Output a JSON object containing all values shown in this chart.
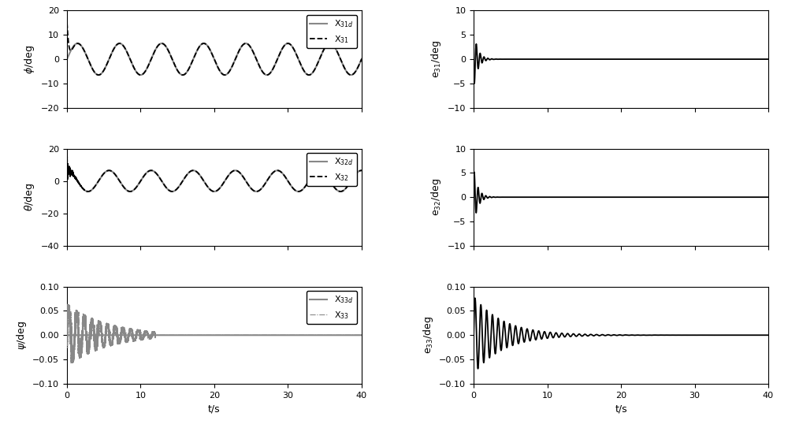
{
  "t_end": 40,
  "dt": 0.005,
  "ylim_phi": [
    -20,
    20
  ],
  "ylim_theta": [
    -40,
    20
  ],
  "ylim_psi": [
    -0.1,
    0.1
  ],
  "ylim_e31": [
    -10,
    10
  ],
  "ylim_e32": [
    -10,
    10
  ],
  "ylim_e33": [
    -0.1,
    0.1
  ],
  "yticks_phi": [
    -20,
    -10,
    0,
    10,
    20
  ],
  "yticks_theta": [
    -40,
    -20,
    0,
    20
  ],
  "yticks_psi": [
    -0.1,
    -0.05,
    0.0,
    0.05,
    0.1
  ],
  "yticks_e31": [
    -10,
    -5,
    0,
    5,
    10
  ],
  "yticks_e32": [
    -10,
    -5,
    0,
    5,
    10
  ],
  "yticks_e33": [
    -0.1,
    -0.05,
    0.0,
    0.05,
    0.1
  ],
  "xticks": [
    0,
    10,
    20,
    30,
    40
  ],
  "ylabel_phi": "$\\phi$/deg",
  "ylabel_theta": "$\\theta$/deg",
  "ylabel_psi": "$\\psi$/deg",
  "ylabel_e31": "e$_{31}$/deg",
  "ylabel_e32": "e$_{32}$/deg",
  "ylabel_e33": "e$_{33}$/deg",
  "xlabel": "t/s",
  "color_gray": "#888888",
  "color_black": "#000000",
  "legend_phi": [
    "X$_{31d}$",
    "X$_{31}$"
  ],
  "legend_theta": [
    "X$_{32d}$",
    "X$_{32}$"
  ],
  "legend_psi": [
    "X$_{33d}$",
    "X$_{33}$"
  ],
  "phi_amp": 6.5,
  "phi_omega": 1.1,
  "theta_amp": 6.5,
  "theta_omega": 1.1,
  "e31_amp": 6.0,
  "e31_omega": 12.0,
  "e31_decay": 1.8,
  "e32_amp": 6.0,
  "e32_omega": 12.0,
  "e32_decay": 1.8,
  "e33_amp": 0.08,
  "e33_omega": 8.0,
  "e33_decay": 0.25,
  "figsize": [
    10.0,
    5.38
  ],
  "dpi": 100
}
